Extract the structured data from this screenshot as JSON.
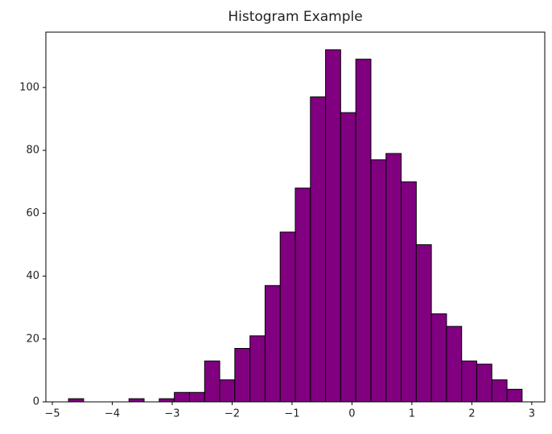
{
  "chart_data": {
    "type": "histogram",
    "title": "Histogram Example",
    "bins": [
      -4.73,
      -4.478,
      -4.225,
      -3.973,
      -3.721,
      -3.469,
      -3.216,
      -2.964,
      -2.712,
      -2.459,
      -2.207,
      -1.955,
      -1.702,
      -1.45,
      -1.198,
      -0.946,
      -0.693,
      -0.441,
      -0.189,
      0.064,
      0.316,
      0.568,
      0.821,
      1.073,
      1.325,
      1.578,
      1.83,
      2.082,
      2.334,
      2.587,
      2.839
    ],
    "values": [
      1,
      0,
      0,
      0,
      1,
      0,
      1,
      3,
      3,
      13,
      7,
      17,
      21,
      37,
      54,
      68,
      97,
      112,
      92,
      109,
      77,
      79,
      70,
      50,
      28,
      24,
      13,
      12,
      7,
      4
    ],
    "color": "#800080",
    "edgecolor": "#000000",
    "xlim": [
      -5.108,
      3.217
    ],
    "ylim": [
      0,
      117.6
    ],
    "xticks": [
      {
        "value": -5,
        "label": "−5"
      },
      {
        "value": -4,
        "label": "−4"
      },
      {
        "value": -3,
        "label": "−3"
      },
      {
        "value": -2,
        "label": "−2"
      },
      {
        "value": -1,
        "label": "−1"
      },
      0,
      1,
      2,
      3
    ],
    "yticks": [
      0,
      20,
      40,
      60,
      80,
      100
    ]
  }
}
